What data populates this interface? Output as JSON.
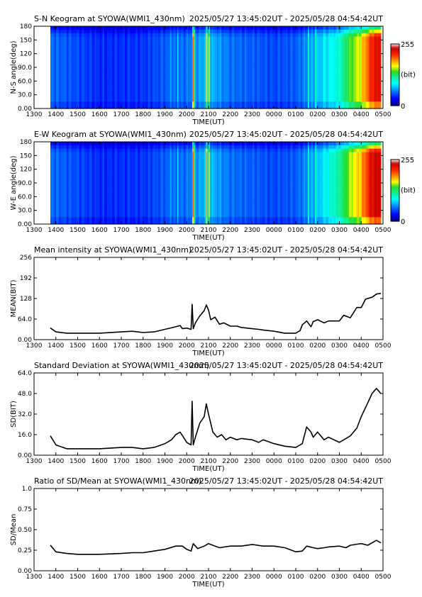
{
  "observation_range": "2025/05/27 13:45:02UT - 2025/05/28 04:54:42UT",
  "time_axis": {
    "label": "TIME(UT)",
    "ticks": [
      "1300",
      "1400",
      "1500",
      "1600",
      "1700",
      "1800",
      "1900",
      "2000",
      "2100",
      "2200",
      "2300",
      "0000",
      "0100",
      "0200",
      "0300",
      "0400",
      "0500"
    ]
  },
  "colors": {
    "line": "#000000",
    "axis": "#000000",
    "background": "#ffffff"
  },
  "chart_data": [
    {
      "type": "heatmap",
      "title": "S-N Keogram at SYOWA(WMI1_430nm)",
      "xlabel": "TIME(UT)",
      "ylabel": "N-S angle(deg)",
      "ylim": [
        0,
        180
      ],
      "yticks": [
        "0.00",
        "30.0",
        "60.0",
        "90.0",
        "120",
        "150",
        "180"
      ],
      "colorbar": {
        "min_label": "0",
        "max_label": "255",
        "unit_label": "(bit)",
        "range": [
          0,
          255
        ]
      },
      "data_start_hour": 13.75,
      "data_end_hour": 28.9,
      "bright_bands": [
        {
          "center_hour": 20.3,
          "level": 0.85
        },
        {
          "center_hour": 20.9,
          "level": 0.7
        },
        {
          "center_hour": 21.05,
          "level": 0.65
        },
        {
          "center_hour": 19.3,
          "level": 0.35
        },
        {
          "center_hour": 19.6,
          "level": 0.35
        },
        {
          "center_hour": 25.6,
          "level": 0.45
        },
        {
          "center_hour": 25.9,
          "level": 0.45
        },
        {
          "center_hour": 26.3,
          "level": 0.4
        }
      ],
      "intensity_trend": [
        [
          13.75,
          0.22
        ],
        [
          16,
          0.15
        ],
        [
          18,
          0.16
        ],
        [
          19,
          0.2
        ],
        [
          20,
          0.22
        ],
        [
          21,
          0.3
        ],
        [
          22,
          0.22
        ],
        [
          24,
          0.18
        ],
        [
          25,
          0.2
        ],
        [
          26,
          0.3
        ],
        [
          27,
          0.4
        ],
        [
          27.5,
          0.55
        ],
        [
          28,
          0.65
        ],
        [
          28.5,
          0.85
        ],
        [
          28.9,
          0.9
        ]
      ]
    },
    {
      "type": "heatmap",
      "title": "E-W Keogram at SYOWA(WMI1_430nm)",
      "xlabel": "TIME(UT)",
      "ylabel": "W-E angle(deg)",
      "ylim": [
        0,
        180
      ],
      "yticks": [
        "0.00",
        "30.0",
        "60.0",
        "90.0",
        "120",
        "150",
        "180"
      ],
      "colorbar": {
        "min_label": "0",
        "max_label": "255",
        "unit_label": "(bit)",
        "range": [
          0,
          255
        ]
      },
      "data_start_hour": 13.75,
      "data_end_hour": 28.9,
      "bright_bands": [
        {
          "center_hour": 20.3,
          "level": 0.85
        },
        {
          "center_hour": 20.9,
          "level": 0.75
        },
        {
          "center_hour": 21.05,
          "level": 0.65
        },
        {
          "center_hour": 19.3,
          "level": 0.35
        },
        {
          "center_hour": 19.6,
          "level": 0.35
        },
        {
          "center_hour": 25.6,
          "level": 0.45
        },
        {
          "center_hour": 25.9,
          "level": 0.45
        },
        {
          "center_hour": 26.3,
          "level": 0.4
        }
      ],
      "intensity_trend": [
        [
          13.75,
          0.22
        ],
        [
          16,
          0.15
        ],
        [
          18,
          0.16
        ],
        [
          19,
          0.2
        ],
        [
          20,
          0.22
        ],
        [
          21,
          0.3
        ],
        [
          22,
          0.22
        ],
        [
          24,
          0.18
        ],
        [
          25,
          0.2
        ],
        [
          26,
          0.3
        ],
        [
          27,
          0.45
        ],
        [
          27.5,
          0.6
        ],
        [
          28,
          0.7
        ],
        [
          28.5,
          0.9
        ],
        [
          28.9,
          0.92
        ]
      ]
    },
    {
      "type": "line",
      "title": "Mean intensity at SYOWA(WMI1_430nm)",
      "xlabel": "TIME(UT)",
      "ylabel": "MEAN(BIT)",
      "ylim": [
        0,
        256
      ],
      "yticks": [
        "0.00",
        "64.0",
        "128",
        "192",
        "256"
      ],
      "x_hours": [
        13.75,
        14,
        14.5,
        15,
        16,
        17,
        17.5,
        18,
        18.5,
        19,
        19.5,
        19.7,
        19.8,
        20,
        20.2,
        20.25,
        20.3,
        20.4,
        20.6,
        20.8,
        20.9,
        21,
        21.1,
        21.3,
        21.5,
        21.7,
        22,
        22.3,
        22.5,
        23,
        23.3,
        23.5,
        24,
        24.5,
        25,
        25.2,
        25.3,
        25.5,
        25.7,
        25.8,
        26,
        26.3,
        26.5,
        27,
        27.2,
        27.5,
        27.8,
        28,
        28.2,
        28.5,
        28.7,
        28.9
      ],
      "values": [
        36,
        24,
        20,
        20,
        20,
        24,
        26,
        22,
        24,
        32,
        40,
        44,
        34,
        36,
        32,
        110,
        34,
        52,
        74,
        90,
        108,
        92,
        62,
        70,
        48,
        52,
        42,
        42,
        38,
        34,
        32,
        30,
        26,
        20,
        20,
        28,
        46,
        58,
        40,
        56,
        62,
        52,
        58,
        58,
        76,
        68,
        100,
        100,
        126,
        132,
        142,
        144
      ]
    },
    {
      "type": "line",
      "title": "Standard Deviation at SYOWA(WMI1_430nm)",
      "xlabel": "TIME(UT)",
      "ylabel": "SD(BIT)",
      "ylim": [
        0,
        64
      ],
      "yticks": [
        "0.00",
        "16.0",
        "32.0",
        "48.0",
        "64.0"
      ],
      "x_hours": [
        13.75,
        14,
        14.5,
        15,
        16,
        17,
        17.5,
        18,
        18.5,
        19,
        19.3,
        19.5,
        19.7,
        20,
        20.2,
        20.25,
        20.3,
        20.4,
        20.6,
        20.8,
        20.9,
        21,
        21.2,
        21.4,
        21.6,
        21.8,
        22,
        22.3,
        22.5,
        23,
        23.3,
        23.5,
        24,
        24.5,
        25,
        25.3,
        25.5,
        25.7,
        25.8,
        26,
        26.3,
        26.5,
        27,
        27.5,
        27.8,
        28,
        28.2,
        28.5,
        28.7,
        28.9
      ],
      "values": [
        15,
        8,
        5,
        5,
        5,
        6,
        6,
        5,
        6,
        9,
        12,
        16,
        18,
        10,
        8,
        42,
        8,
        14,
        25,
        30,
        40,
        32,
        18,
        14,
        16,
        12,
        14,
        12,
        13,
        12,
        10,
        12,
        9,
        7,
        6,
        9,
        22,
        18,
        14,
        18,
        12,
        14,
        10,
        15,
        21,
        30,
        37,
        48,
        52,
        48
      ]
    },
    {
      "type": "line",
      "title": "Ratio of SD/Mean at SYOWA(WMI1_430nm)",
      "xlabel": "TIME(UT)",
      "ylabel": "SD/Mean",
      "ylim": [
        0,
        1
      ],
      "yticks": [
        "0.00",
        "0.25",
        "0.50",
        "0.75",
        "1.0"
      ],
      "x_hours": [
        13.75,
        14,
        14.5,
        15,
        16,
        17,
        17.5,
        18,
        18.5,
        19,
        19.5,
        19.8,
        20,
        20.2,
        20.3,
        20.5,
        20.8,
        21,
        21.3,
        21.5,
        22,
        22.5,
        23,
        23.5,
        24,
        24.5,
        25,
        25.3,
        25.5,
        25.8,
        26,
        26.3,
        26.5,
        27,
        27.3,
        27.5,
        28,
        28.3,
        28.5,
        28.7,
        28.9
      ],
      "values": [
        0.31,
        0.23,
        0.21,
        0.2,
        0.2,
        0.21,
        0.22,
        0.22,
        0.24,
        0.26,
        0.3,
        0.3,
        0.26,
        0.24,
        0.33,
        0.27,
        0.3,
        0.33,
        0.3,
        0.28,
        0.3,
        0.3,
        0.32,
        0.3,
        0.3,
        0.28,
        0.23,
        0.24,
        0.3,
        0.28,
        0.27,
        0.28,
        0.29,
        0.3,
        0.28,
        0.31,
        0.33,
        0.31,
        0.34,
        0.37,
        0.34
      ]
    }
  ]
}
